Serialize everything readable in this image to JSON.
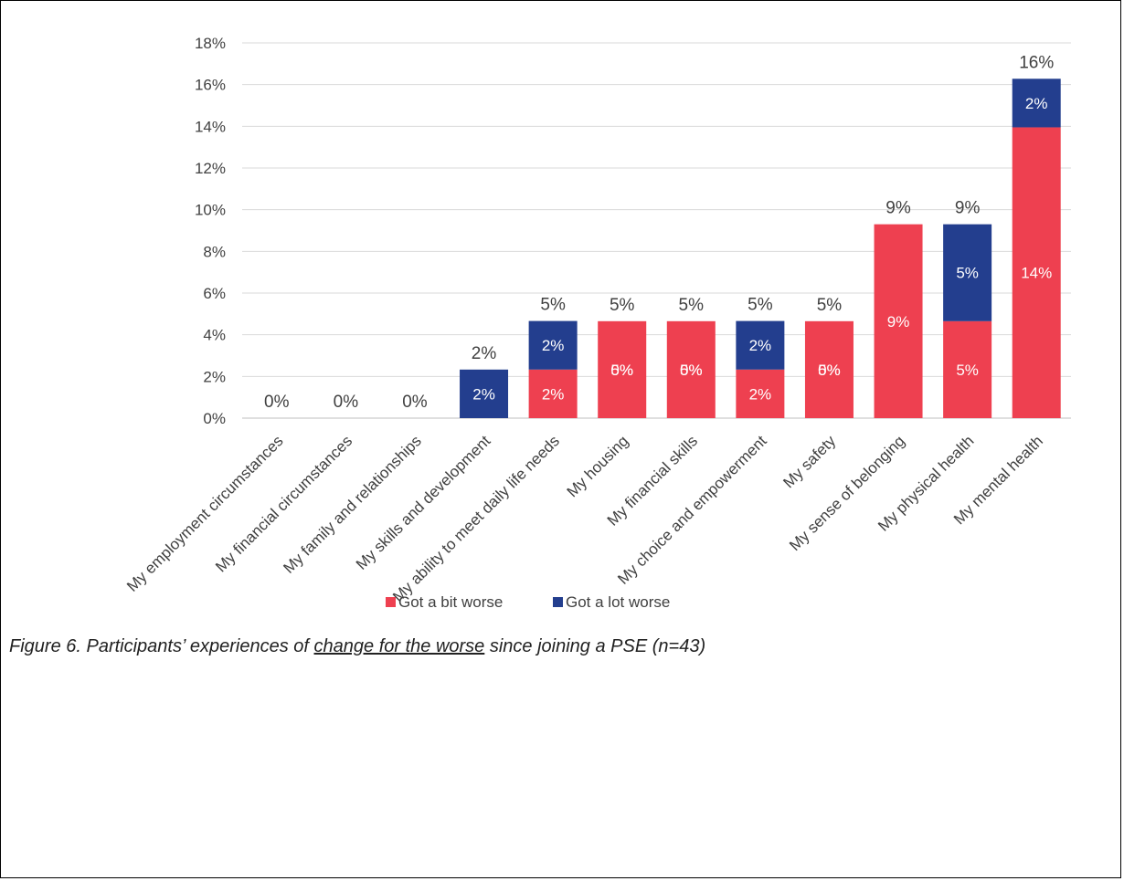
{
  "chart_data": {
    "type": "bar",
    "stacked": true,
    "categories": [
      "My employment circumstances",
      "My financial circumstances",
      "My family and relationships",
      "My skills and development",
      "My ability to meet daily life needs",
      "My housing",
      "My financial skills",
      "My choice and empowerment",
      "My safety",
      "My sense of belonging",
      "My physical health",
      "My mental health"
    ],
    "series": [
      {
        "name": "Got a bit worse",
        "color": "#EE4050",
        "values": [
          0,
          0,
          0,
          0,
          2.33,
          4.65,
          4.65,
          2.33,
          4.65,
          9.3,
          4.65,
          13.95
        ],
        "labels": [
          "",
          "",
          "",
          "",
          "2%",
          "5%",
          "5%",
          "2%",
          "5%",
          "9%",
          "5%",
          "14%"
        ]
      },
      {
        "name": "Got a lot worse",
        "color": "#233E8E",
        "values": [
          0,
          0,
          0,
          2.33,
          2.33,
          0,
          0,
          2.33,
          0,
          0,
          4.65,
          2.33
        ],
        "labels": [
          "",
          "",
          "",
          "2%",
          "2%",
          "0%",
          "0%",
          "2%",
          "0%",
          "",
          "5%",
          "2%"
        ]
      }
    ],
    "totals": [
      "0%",
      "0%",
      "0%",
      "2%",
      "5%",
      "5%",
      "5%",
      "5%",
      "5%",
      "9%",
      "9%",
      "16%"
    ],
    "yticks": [
      "0%",
      "2%",
      "4%",
      "6%",
      "8%",
      "10%",
      "12%",
      "14%",
      "16%",
      "18%"
    ],
    "ylim": [
      0,
      18
    ],
    "grid": true,
    "legend_position": "bottom"
  },
  "caption": {
    "before": "Figure 6. Participants’ experiences of ",
    "underlined": "change for the worse",
    "after": " since joining a PSE (n=43)"
  }
}
